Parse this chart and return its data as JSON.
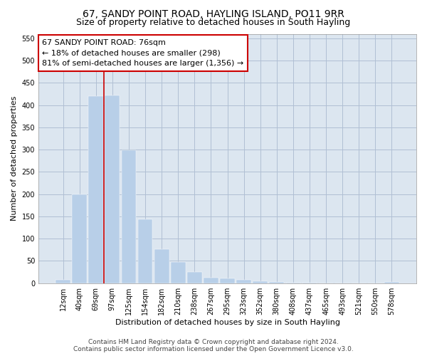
{
  "title": "67, SANDY POINT ROAD, HAYLING ISLAND, PO11 9RR",
  "subtitle": "Size of property relative to detached houses in South Hayling",
  "xlabel": "Distribution of detached houses by size in South Hayling",
  "ylabel": "Number of detached properties",
  "categories": [
    "12sqm",
    "40sqm",
    "69sqm",
    "97sqm",
    "125sqm",
    "154sqm",
    "182sqm",
    "210sqm",
    "238sqm",
    "267sqm",
    "295sqm",
    "323sqm",
    "352sqm",
    "380sqm",
    "408sqm",
    "437sqm",
    "465sqm",
    "493sqm",
    "521sqm",
    "550sqm",
    "578sqm"
  ],
  "values": [
    8,
    200,
    420,
    421,
    298,
    143,
    77,
    47,
    25,
    12,
    10,
    7,
    5,
    3,
    1,
    1,
    0,
    0,
    0,
    0,
    3
  ],
  "bar_color": "#b8cfe8",
  "bar_edge_color": "#b8cfe8",
  "ylim": [
    0,
    560
  ],
  "yticks": [
    0,
    50,
    100,
    150,
    200,
    250,
    300,
    350,
    400,
    450,
    500,
    550
  ],
  "property_line_color": "#cc0000",
  "annotation_title": "67 SANDY POINT ROAD: 76sqm",
  "annotation_line1": "← 18% of detached houses are smaller (298)",
  "annotation_line2": "81% of semi-detached houses are larger (1,356) →",
  "annotation_box_color": "#cc0000",
  "footer_line1": "Contains HM Land Registry data © Crown copyright and database right 2024.",
  "footer_line2": "Contains public sector information licensed under the Open Government Licence v3.0.",
  "background_color": "#ffffff",
  "plot_bg_color": "#dce6f0",
  "grid_color": "#b0bfd4",
  "title_fontsize": 10,
  "subtitle_fontsize": 9,
  "axis_label_fontsize": 8,
  "tick_fontsize": 7,
  "annotation_fontsize": 8,
  "footer_fontsize": 6.5
}
